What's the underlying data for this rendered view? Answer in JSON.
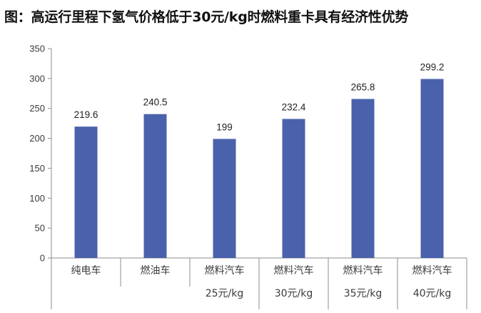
{
  "title": "图：高运行里程下氢气价格低于30元/kg时燃料重卡具有经济性优势",
  "chart_data": {
    "type": "bar",
    "categories": [
      [
        "纯电车"
      ],
      [
        "燃油车"
      ],
      [
        "燃料汽车",
        "25元/kg"
      ],
      [
        "燃料汽车",
        "30元/kg"
      ],
      [
        "燃料汽车",
        "35元/kg"
      ],
      [
        "燃料汽车",
        "40元/kg"
      ]
    ],
    "values": [
      219.6,
      240.5,
      199,
      232.4,
      265.8,
      299.2
    ],
    "value_labels": [
      "219.6",
      "240.5",
      "199",
      "232.4",
      "265.8",
      "299.2"
    ],
    "yticks": [
      "0",
      "50",
      "100",
      "150",
      "200",
      "250",
      "300",
      "350"
    ],
    "ylim": [
      0,
      350
    ],
    "bar_color": "#4a62ab",
    "grid": false
  }
}
